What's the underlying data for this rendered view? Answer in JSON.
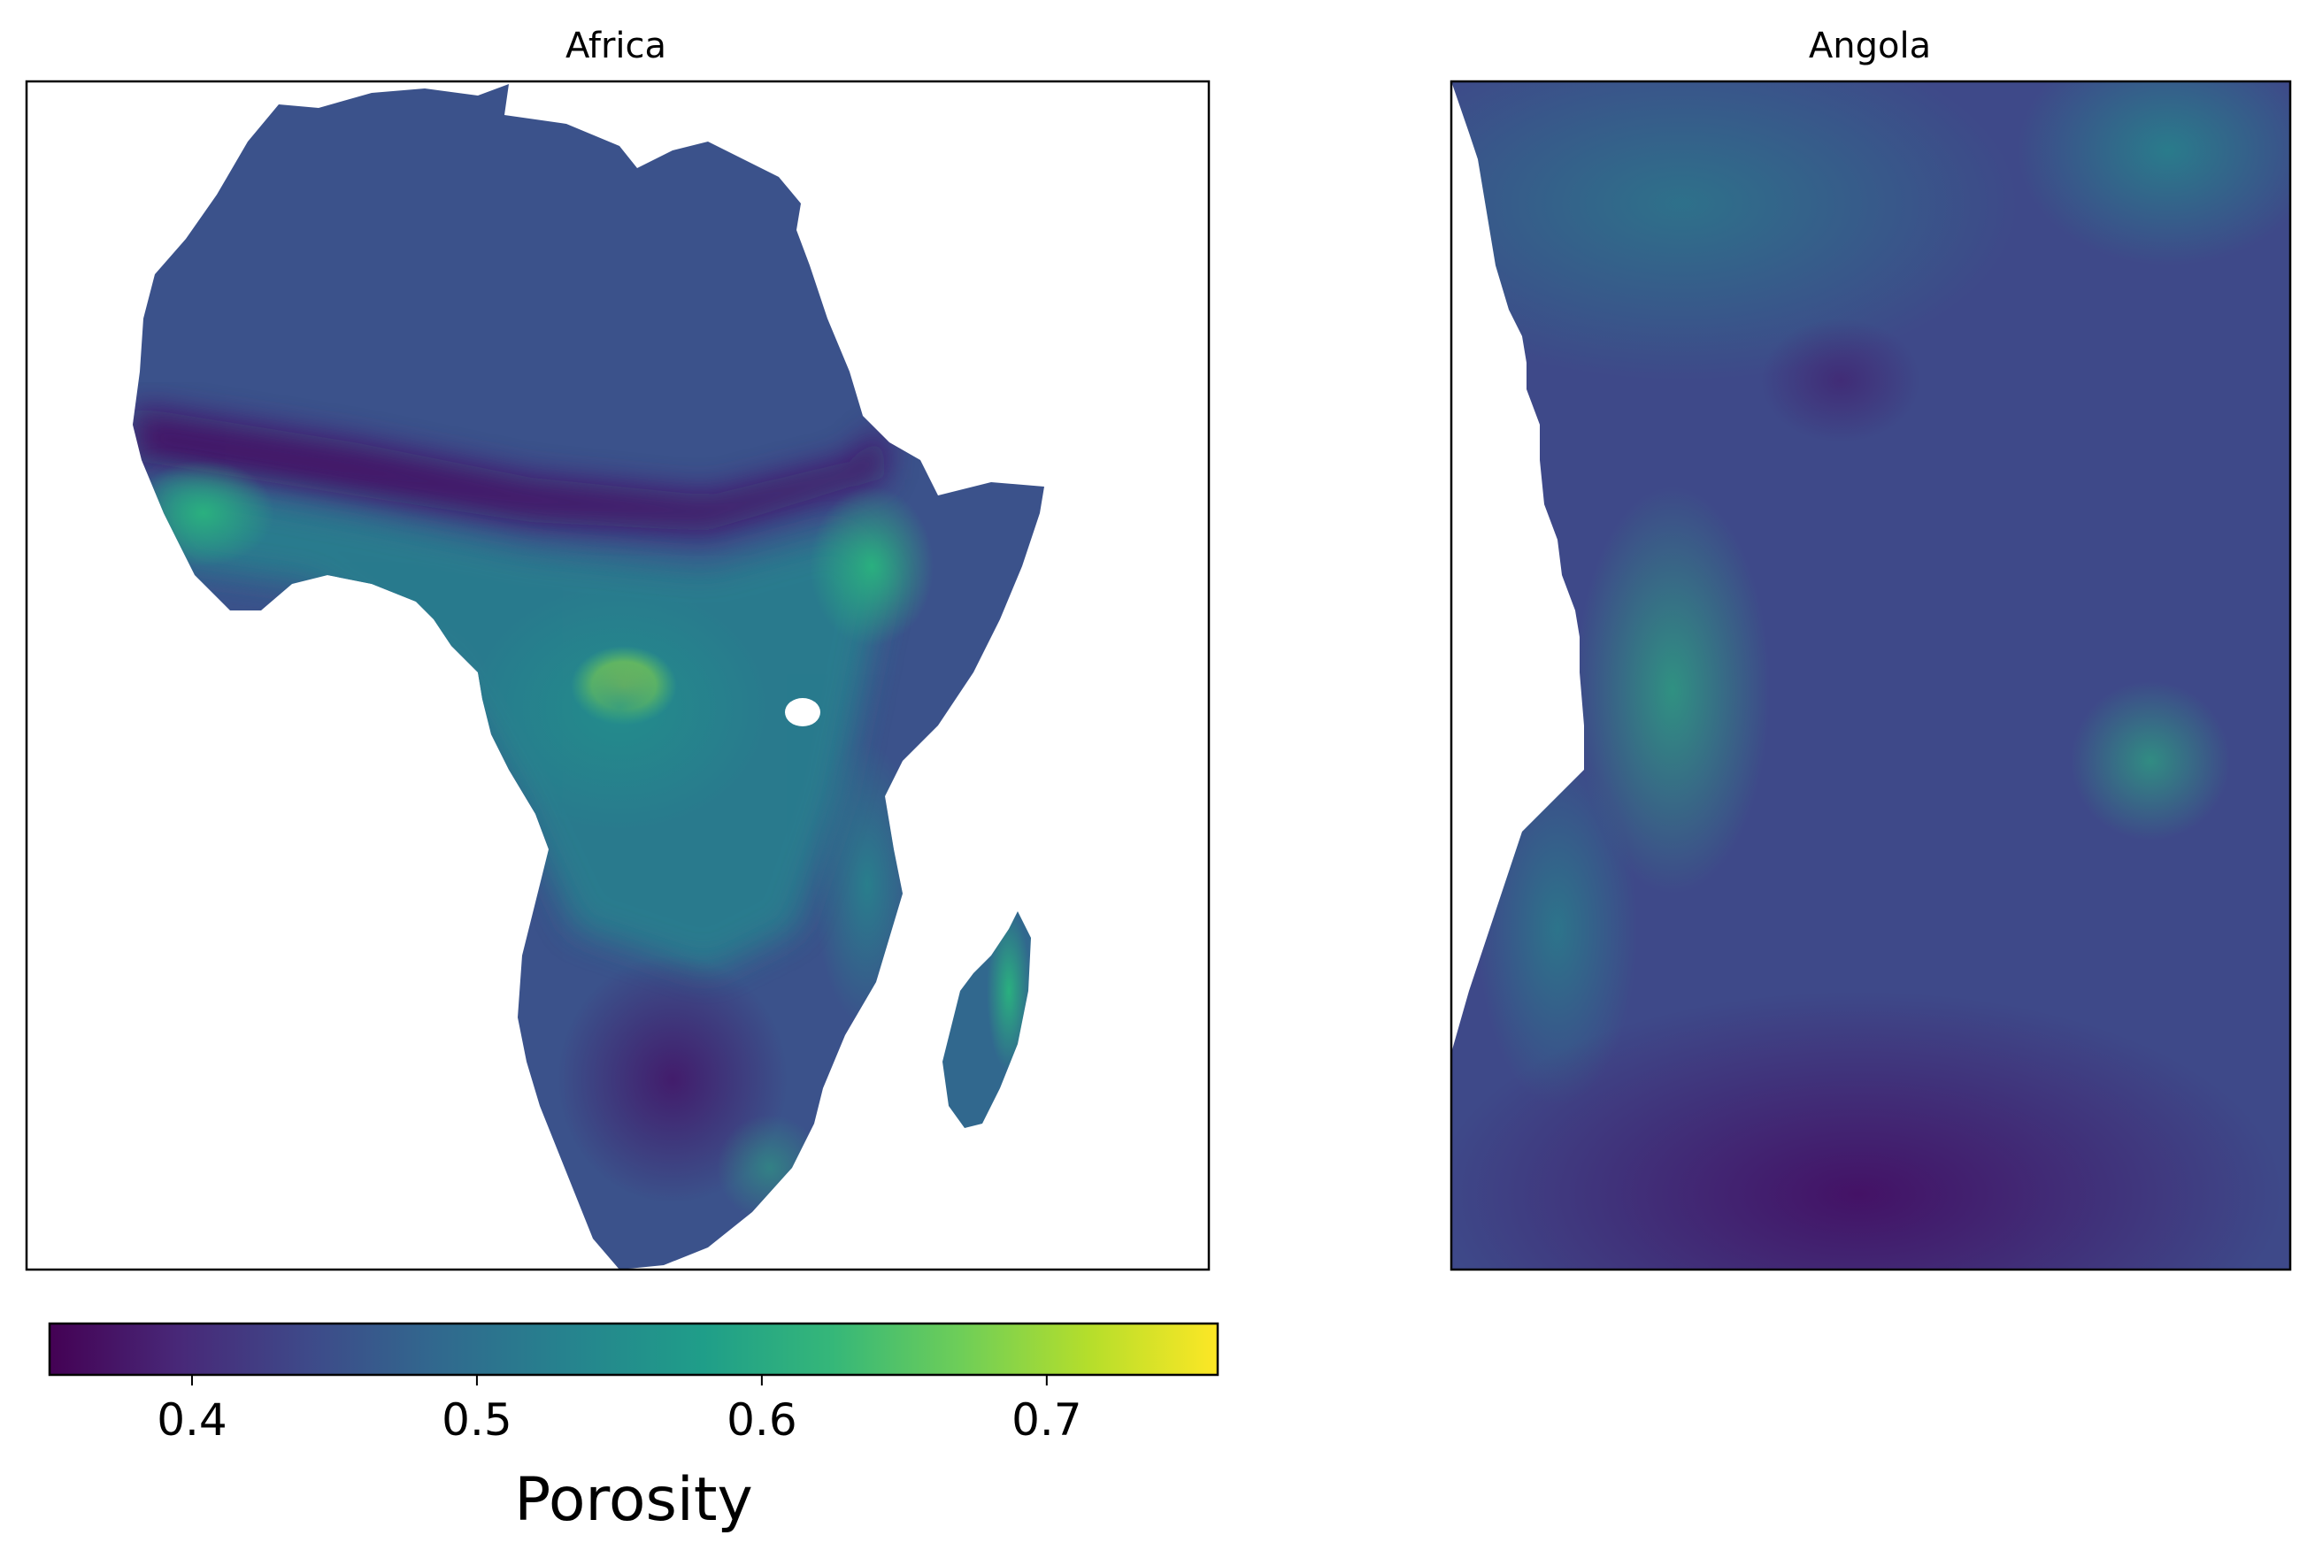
{
  "panels": [
    {
      "title": "Africa"
    },
    {
      "title": "Angola"
    }
  ],
  "colorbar": {
    "label": "Porosity",
    "colormap": "viridis",
    "range": [
      0.35,
      0.76
    ],
    "ticks": [
      "0.4",
      "0.5",
      "0.6",
      "0.7"
    ],
    "tick_values": [
      0.4,
      0.5,
      0.6,
      0.7
    ]
  },
  "colors": {
    "viridis_stops": [
      "#440154",
      "#482878",
      "#3e4989",
      "#31688e",
      "#26828e",
      "#1f9e89",
      "#35b779",
      "#6ece58",
      "#b5de2b",
      "#fde725"
    ],
    "frame": "#000000",
    "background": "#ffffff"
  }
}
